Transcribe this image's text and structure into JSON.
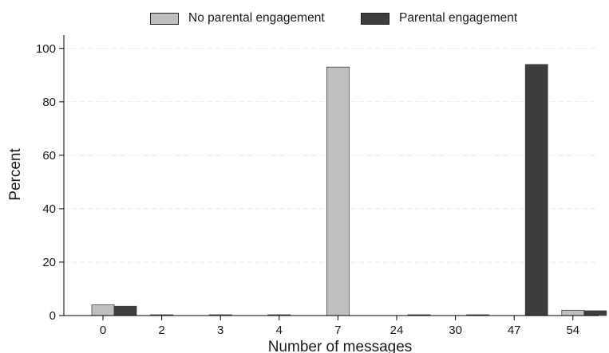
{
  "chart_data": {
    "type": "bar",
    "xlabel": "Number of messages",
    "ylabel": "Percent",
    "categories": [
      "0",
      "2",
      "3",
      "4",
      "7",
      "24",
      "30",
      "47",
      "54"
    ],
    "series": [
      {
        "name": "No parental engagement",
        "color": "#bfbfbf",
        "values": [
          4.0,
          0.3,
          0.3,
          0.3,
          93.0,
          0.0,
          0.0,
          0.0,
          2.0
        ]
      },
      {
        "name": "Parental engagement",
        "color": "#3d3d3d",
        "values": [
          3.5,
          0.0,
          0.0,
          0.0,
          0.0,
          0.3,
          0.3,
          94.0,
          1.8
        ]
      }
    ],
    "ylim": [
      0,
      105
    ],
    "yticks": [
      "0",
      "20",
      "40",
      "60",
      "80",
      "100"
    ],
    "grid": true,
    "legend_position": "top"
  }
}
